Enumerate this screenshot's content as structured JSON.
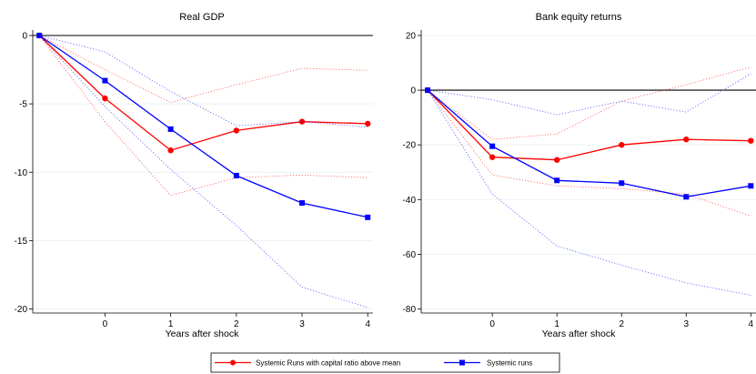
{
  "chart_data": [
    {
      "type": "line",
      "title": "Real GDP",
      "xlabel": "Years after shock",
      "ylabel": "",
      "x": [
        -1,
        0,
        1,
        2,
        3,
        4
      ],
      "x_tick_values": [
        0,
        1,
        2,
        3,
        4
      ],
      "x_tick_labels": [
        "0",
        "1",
        "2",
        "3",
        "4"
      ],
      "xlim": [
        -1.1,
        4.08
      ],
      "ylim": [
        -20.3,
        0.4
      ],
      "y_ticks": [
        0,
        -5,
        -10,
        -15,
        -20
      ],
      "y_tick_labels": [
        "0",
        "-5",
        "-10",
        "-15",
        "-20"
      ],
      "reference_line": 0,
      "grid": true,
      "series": [
        {
          "name": "Systemic Runs with capital ratio above mean",
          "color": "#ff0000",
          "marker": "circle",
          "values": [
            0,
            -4.6,
            -8.4,
            -6.95,
            -6.3,
            -6.45
          ],
          "ci_lower": [
            0,
            -6.3,
            -11.7,
            -10.4,
            -10.2,
            -10.4
          ],
          "ci_upper": [
            0,
            -2.5,
            -4.9,
            -3.6,
            -2.4,
            -2.55
          ]
        },
        {
          "name": "Systemic runs",
          "color": "#0000ff",
          "marker": "square",
          "values": [
            0,
            -3.3,
            -6.85,
            -10.25,
            -12.25,
            -13.3
          ],
          "ci_lower": [
            0,
            -5.2,
            -9.8,
            -13.9,
            -18.4,
            -19.9
          ],
          "ci_upper": [
            0,
            -1.2,
            -4.1,
            -6.6,
            -6.3,
            -6.7
          ]
        }
      ]
    },
    {
      "type": "line",
      "title": "Bank equity returns",
      "xlabel": "Years after shock",
      "ylabel": "",
      "x": [
        -1,
        0,
        1,
        2,
        3,
        4
      ],
      "x_tick_values": [
        0,
        1,
        2,
        3,
        4
      ],
      "x_tick_labels": [
        "0",
        "1",
        "2",
        "3",
        "4"
      ],
      "xlim": [
        -1.1,
        4.08
      ],
      "ylim": [
        -81.5,
        22
      ],
      "y_ticks": [
        20,
        0,
        -20,
        -40,
        -60,
        -80
      ],
      "y_tick_labels": [
        "20",
        "0",
        "-20",
        "-40",
        "-60",
        "-80"
      ],
      "reference_line": 0,
      "grid": true,
      "series": [
        {
          "name": "Systemic Runs with capital ratio above mean",
          "color": "#ff0000",
          "marker": "circle",
          "values": [
            0,
            -24.5,
            -25.5,
            -20.0,
            -18.0,
            -18.5
          ],
          "ci_lower": [
            0,
            -31.0,
            -35.0,
            -36.0,
            -38.0,
            -46.0
          ],
          "ci_upper": [
            0,
            -18.0,
            -16.0,
            -4.0,
            2.0,
            8.5
          ]
        },
        {
          "name": "Systemic runs",
          "color": "#0000ff",
          "marker": "square",
          "values": [
            0,
            -20.5,
            -33.0,
            -34.0,
            -39.0,
            -35.0
          ],
          "ci_lower": [
            0,
            -38.0,
            -57.0,
            -64.0,
            -70.5,
            -75.0
          ],
          "ci_upper": [
            0,
            -3.5,
            -9.0,
            -4.0,
            -8.0,
            6.0
          ]
        }
      ]
    }
  ],
  "legend": {
    "placement": "bottom-center",
    "entries": [
      {
        "label": "Systemic Runs with capital ratio above mean",
        "color": "#ff0000",
        "marker": "circle"
      },
      {
        "label": "Systemic runs",
        "color": "#0000ff",
        "marker": "square"
      }
    ]
  }
}
